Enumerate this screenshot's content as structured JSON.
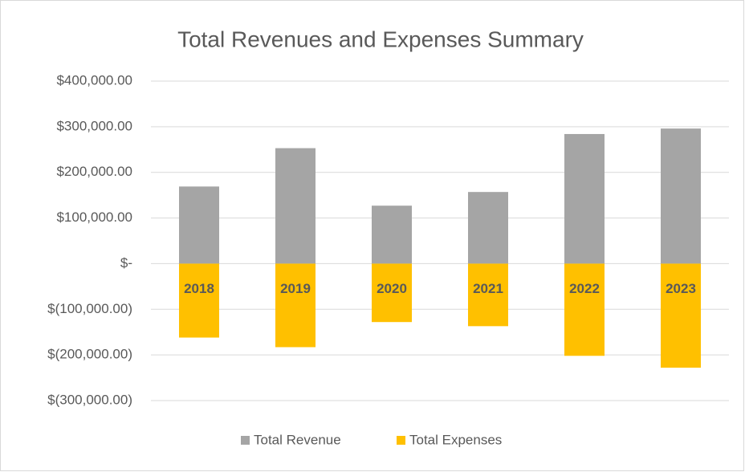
{
  "chart_data": {
    "type": "bar",
    "title": "Total Revenues and Expenses Summary",
    "categories": [
      "2018",
      "2019",
      "2020",
      "2021",
      "2022",
      "2023"
    ],
    "series": [
      {
        "name": "Total Revenue",
        "color": "#a5a5a5",
        "values": [
          169000,
          253000,
          127000,
          157000,
          284000,
          296000
        ]
      },
      {
        "name": "Total Expenses",
        "color": "#ffc000",
        "values": [
          -162000,
          -183000,
          -128000,
          -137000,
          -202000,
          -228000
        ]
      }
    ],
    "ylim": [
      -300000,
      400000
    ],
    "yticks": [
      {
        "value": 400000,
        "label": "$400,000.00"
      },
      {
        "value": 300000,
        "label": "$300,000.00"
      },
      {
        "value": 200000,
        "label": "$200,000.00"
      },
      {
        "value": 100000,
        "label": "$100,000.00"
      },
      {
        "value": 0,
        "label": "$-"
      },
      {
        "value": -100000,
        "label": "$(100,000.00)"
      },
      {
        "value": -200000,
        "label": "$(200,000.00)"
      },
      {
        "value": -300000,
        "label": "$(300,000.00)"
      }
    ],
    "grid": true,
    "stacked": true,
    "legend": "bottom"
  }
}
